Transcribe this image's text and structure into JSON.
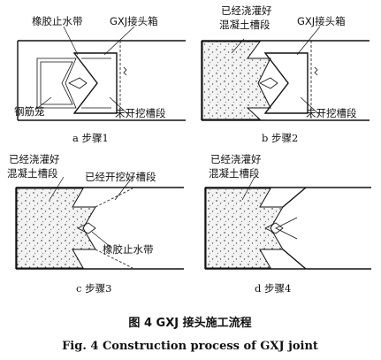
{
  "panels": [
    {
      "id": "a",
      "caption": "a  步骤1",
      "labels": {
        "seal": "橡胶止水带",
        "joint_box": "GXJ接头箱",
        "cage": "钢筋笼",
        "unexcavated": "未开挖槽段"
      }
    },
    {
      "id": "b",
      "caption": "b  步骤2",
      "labels": {
        "poured": "已经浇灌好\n混凝土槽段",
        "joint_box": "GXJ接头箱",
        "unexcavated": "未开挖槽段"
      }
    },
    {
      "id": "c",
      "caption": "c  步骤3",
      "labels": {
        "poured": "已经浇灌好\n混凝土槽段",
        "excavated": "已经开挖好槽段",
        "seal": "橡胶止水带"
      }
    },
    {
      "id": "d",
      "caption": "d  步骤4",
      "labels": {
        "poured": "已经浇灌好\n混凝土槽段"
      }
    }
  ],
  "figure": {
    "title_cn": "图 4    GXJ 接头施工流程",
    "title_en": "Fig. 4    Construction process of GXJ joint"
  }
}
